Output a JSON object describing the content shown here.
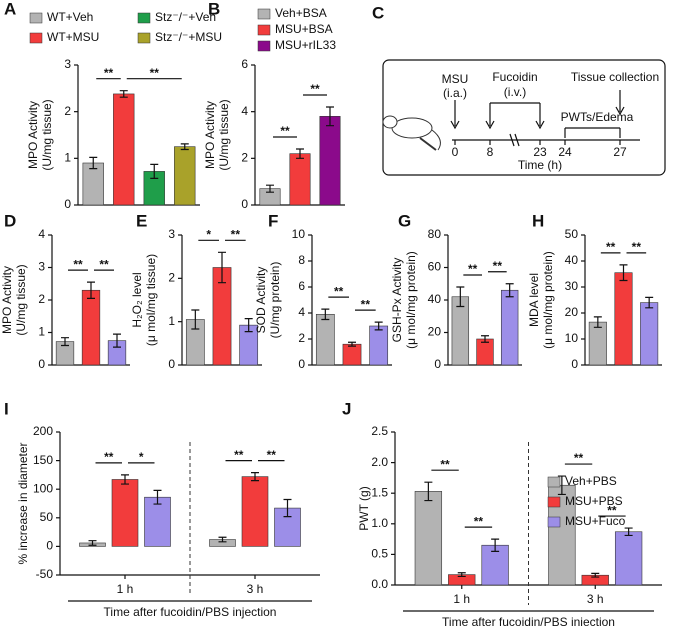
{
  "chart_data": [
    {
      "type": "bar",
      "panel": "A",
      "ylabel": [
        "MPO Activity",
        "(U/mg tissue)"
      ],
      "categories": [
        "WT+Veh",
        "WT+MSU",
        "Stz⁻/⁻+Veh",
        "Stz⁻/⁻+MSU"
      ],
      "values": [
        0.9,
        2.38,
        0.72,
        1.25
      ],
      "errors": [
        0.12,
        0.07,
        0.15,
        0.06
      ],
      "colors": [
        "#b3b3b3",
        "#f23c3c",
        "#1f9e4a",
        "#a9a22a"
      ],
      "ylim": [
        0,
        3
      ],
      "yticks": [
        0,
        1,
        2,
        3
      ],
      "significance": [
        {
          "label": "**",
          "from": 0,
          "to": 1
        },
        {
          "label": "**",
          "from": 1,
          "to": 3
        }
      ]
    },
    {
      "type": "bar",
      "panel": "B",
      "ylabel": [
        "MPO Activity",
        "(U/mg tissue)"
      ],
      "categories": [
        "Veh+BSA",
        "MSU+BSA",
        "MSU+rIL33"
      ],
      "values": [
        0.7,
        2.2,
        3.8
      ],
      "errors": [
        0.15,
        0.2,
        0.4
      ],
      "colors": [
        "#b3b3b3",
        "#f23c3c",
        "#8b0a8b"
      ],
      "ylim": [
        0,
        6
      ],
      "yticks": [
        0,
        2,
        4,
        6
      ],
      "significance": [
        {
          "label": "**",
          "from": 0,
          "to": 1
        },
        {
          "label": "**",
          "from": 1,
          "to": 2
        }
      ]
    },
    {
      "type": "bar",
      "panel": "D",
      "ylabel": [
        "MPO Activity",
        "(U/mg tissue)"
      ],
      "values": [
        0.72,
        2.3,
        0.75
      ],
      "errors": [
        0.12,
        0.25,
        0.2
      ],
      "colors": [
        "#b3b3b3",
        "#f23c3c",
        "#9c8ee8"
      ],
      "ylim": [
        0,
        4
      ],
      "yticks": [
        0,
        1,
        2,
        3,
        4
      ],
      "significance": [
        {
          "label": "**",
          "from": 0,
          "to": 1
        },
        {
          "label": "**",
          "from": 1,
          "to": 2
        }
      ]
    },
    {
      "type": "bar",
      "panel": "E",
      "ylabel": [
        "H₂O₂ level",
        "(μ mol/mg tissue)"
      ],
      "values": [
        1.05,
        2.25,
        0.92
      ],
      "errors": [
        0.22,
        0.35,
        0.15
      ],
      "colors": [
        "#b3b3b3",
        "#f23c3c",
        "#9c8ee8"
      ],
      "ylim": [
        0,
        3
      ],
      "yticks": [
        0,
        1,
        2,
        3
      ],
      "significance": [
        {
          "label": "*",
          "from": 0,
          "to": 1
        },
        {
          "label": "**",
          "from": 1,
          "to": 2
        }
      ]
    },
    {
      "type": "bar",
      "panel": "F",
      "ylabel": [
        "SOD Activity",
        "(U/mg protein)"
      ],
      "values": [
        3.9,
        1.6,
        3.0
      ],
      "errors": [
        0.4,
        0.15,
        0.3
      ],
      "colors": [
        "#b3b3b3",
        "#f23c3c",
        "#9c8ee8"
      ],
      "ylim": [
        0,
        10
      ],
      "yticks": [
        0,
        2,
        4,
        6,
        8,
        10
      ],
      "significance": [
        {
          "label": "**",
          "from": 0,
          "to": 1
        },
        {
          "label": "**",
          "from": 1,
          "to": 2
        }
      ]
    },
    {
      "type": "bar",
      "panel": "G",
      "ylabel": [
        "GSH-Px Activity",
        "(μ mol/mg protein)"
      ],
      "values": [
        42,
        16,
        46
      ],
      "errors": [
        6,
        2,
        4
      ],
      "colors": [
        "#b3b3b3",
        "#f23c3c",
        "#9c8ee8"
      ],
      "ylim": [
        0,
        80
      ],
      "yticks": [
        0,
        20,
        40,
        60,
        80
      ],
      "significance": [
        {
          "label": "**",
          "from": 0,
          "to": 1
        },
        {
          "label": "**",
          "from": 1,
          "to": 2
        }
      ]
    },
    {
      "type": "bar",
      "panel": "H",
      "ylabel": [
        "MDA level",
        "(μ mol/mg protein)"
      ],
      "values": [
        16.5,
        35.5,
        24
      ],
      "errors": [
        2,
        3,
        2
      ],
      "colors": [
        "#b3b3b3",
        "#f23c3c",
        "#9c8ee8"
      ],
      "ylim": [
        0,
        50
      ],
      "yticks": [
        0,
        10,
        20,
        30,
        40,
        50
      ],
      "significance": [
        {
          "label": "**",
          "from": 0,
          "to": 1
        },
        {
          "label": "**",
          "from": 1,
          "to": 2
        }
      ]
    },
    {
      "type": "grouped-bar",
      "panel": "I",
      "ylabel": [
        "% increase in diameter"
      ],
      "xlabel": "Time after fucoidin/PBS injection",
      "categories": [
        "1 h",
        "3 h"
      ],
      "series": [
        {
          "color": "#b3b3b3",
          "values": [
            6,
            12
          ],
          "errors": [
            4,
            4
          ]
        },
        {
          "color": "#f23c3c",
          "values": [
            117,
            122
          ],
          "errors": [
            8,
            7
          ]
        },
        {
          "color": "#9c8ee8",
          "values": [
            86,
            67
          ],
          "errors": [
            12,
            15
          ]
        }
      ],
      "ylim": [
        -50,
        200
      ],
      "yticks": [
        -50,
        0,
        50,
        100,
        150,
        200
      ],
      "significance": [
        {
          "label": "**",
          "group": 0,
          "from": 0,
          "to": 1
        },
        {
          "label": "*",
          "group": 0,
          "from": 1,
          "to": 2
        },
        {
          "label": "**",
          "group": 1,
          "from": 0,
          "to": 1
        },
        {
          "label": "**",
          "group": 1,
          "from": 1,
          "to": 2
        }
      ]
    },
    {
      "type": "grouped-bar",
      "panel": "J",
      "ylabel": [
        "PWT (g)"
      ],
      "xlabel": "Time after fucoidin/PBS injection",
      "categories": [
        "1 h",
        "3 h"
      ],
      "series": [
        {
          "name": "Veh+PBS",
          "color": "#b3b3b3",
          "values": [
            1.53,
            1.63
          ],
          "errors": [
            0.15,
            0.15
          ]
        },
        {
          "name": "MSU+PBS",
          "color": "#f23c3c",
          "values": [
            0.17,
            0.16
          ],
          "errors": [
            0.03,
            0.03
          ]
        },
        {
          "name": "MSU+Fuco",
          "color": "#9c8ee8",
          "values": [
            0.65,
            0.87
          ],
          "errors": [
            0.1,
            0.06
          ]
        }
      ],
      "ylim": [
        0,
        2.5
      ],
      "yticks": [
        {
          "value": 0,
          "label": "0.0"
        },
        0.5,
        {
          "value": 1,
          "label": "1.0"
        },
        1.5,
        {
          "value": 2,
          "label": "2.0"
        },
        2.5
      ],
      "significance": [
        {
          "label": "**",
          "group": 0,
          "from": 0,
          "to": 1
        },
        {
          "label": "**",
          "group": 0,
          "from": 1,
          "to": 2
        },
        {
          "label": "**",
          "group": 1,
          "from": 0,
          "to": 1
        },
        {
          "label": "**",
          "group": 1,
          "from": 1,
          "to": 2
        }
      ]
    }
  ],
  "diagram": {
    "panel": "C",
    "msu": "MSU",
    "msu_route": "(i.a.)",
    "fucoidin": "Fucoidin",
    "fucoidin_route": "(i.v.)",
    "tissue": "Tissue collection",
    "pwt": "PWTs/Edema",
    "times": [
      "0",
      "8",
      "23",
      "24",
      "27"
    ],
    "axis": "Time (h)"
  }
}
